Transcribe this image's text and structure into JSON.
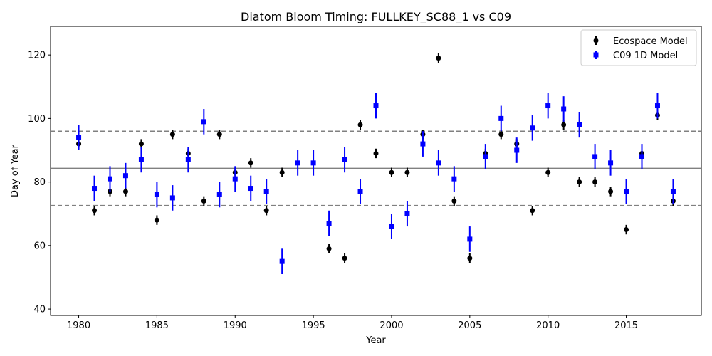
{
  "chart_data": {
    "type": "scatter",
    "title": "Diatom Bloom Timing: FULLKEY_SC88_1 vs C09",
    "xlabel": "Year",
    "ylabel": "Day of Year",
    "xlim": [
      1978.2,
      2019.8
    ],
    "ylim": [
      38,
      129
    ],
    "xticks": [
      1980,
      1985,
      1990,
      1995,
      2000,
      2005,
      2010,
      2015
    ],
    "yticks": [
      40,
      60,
      80,
      100,
      120
    ],
    "grid": false,
    "legend_position": "top-right",
    "reference_lines": {
      "mean": 84.3,
      "upper": 96,
      "lower": 72.6,
      "mean_color": "#808080",
      "band_color": "#808080"
    },
    "series": [
      {
        "name": "Ecospace Model",
        "color": "#000000",
        "marker": "circle",
        "x": [
          1980,
          1981,
          1982,
          1983,
          1984,
          1985,
          1986,
          1987,
          1988,
          1989,
          1990,
          1991,
          1992,
          1993,
          1994,
          1995,
          1996,
          1997,
          1998,
          1999,
          2000,
          2001,
          2002,
          2003,
          2004,
          2005,
          2006,
          2007,
          2008,
          2009,
          2010,
          2011,
          2012,
          2013,
          2014,
          2015,
          2016,
          2017,
          2018
        ],
        "y": [
          92,
          71,
          77,
          77,
          92,
          68,
          95,
          89,
          74,
          95,
          83,
          86,
          71,
          83,
          null,
          null,
          59,
          56,
          98,
          89,
          83,
          83,
          95,
          119,
          74,
          56,
          89,
          95,
          92,
          71,
          83,
          98,
          80,
          80,
          77,
          65,
          89,
          101,
          74
        ],
        "err": 1.5
      },
      {
        "name": "C09 1D Model",
        "color": "#0000ff",
        "marker": "square",
        "x": [
          1980,
          1981,
          1982,
          1983,
          1984,
          1985,
          1986,
          1987,
          1988,
          1989,
          1990,
          1991,
          1992,
          1993,
          1994,
          1995,
          1996,
          1997,
          1998,
          1999,
          2000,
          2001,
          2002,
          2003,
          2004,
          2005,
          2006,
          2007,
          2008,
          2009,
          2010,
          2011,
          2012,
          2013,
          2014,
          2015,
          2016,
          2017,
          2018
        ],
        "y": [
          94,
          78,
          81,
          82,
          87,
          76,
          75,
          87,
          99,
          76,
          81,
          78,
          77,
          55,
          86,
          86,
          67,
          87,
          77,
          104,
          66,
          70,
          92,
          86,
          81,
          62,
          88,
          100,
          90,
          97,
          104,
          103,
          98,
          88,
          86,
          77,
          88,
          104,
          77
        ],
        "err": 4
      }
    ]
  }
}
